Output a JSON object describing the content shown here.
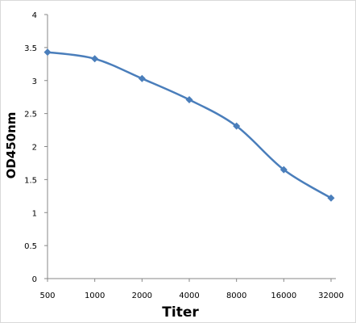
{
  "chart_data": {
    "type": "line",
    "title": "",
    "xlabel": "Titer",
    "ylabel": "OD450nm",
    "categories": [
      "500",
      "1000",
      "2000",
      "4000",
      "8000",
      "16000",
      "32000"
    ],
    "series": [
      {
        "values": [
          3.43,
          3.33,
          3.03,
          2.71,
          2.31,
          1.65,
          1.22
        ]
      }
    ],
    "ylim": [
      0,
      4
    ],
    "yticks": [
      "0",
      "0.5",
      "1",
      "1.5",
      "2",
      "2.5",
      "3",
      "3.5",
      "4"
    ],
    "grid": false,
    "legend": "none",
    "line_color": "#4a7ebb",
    "marker": "diamond",
    "smooth": true
  }
}
